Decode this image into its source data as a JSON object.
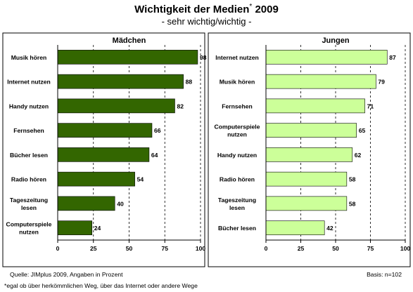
{
  "header": {
    "title": "Wichtigkeit der Medien",
    "title_mark": "*",
    "title_year": "2009",
    "subtitle": "- sehr wichtig/wichtig -"
  },
  "chart_data": [
    {
      "type": "bar",
      "orientation": "horizontal",
      "title": "Mädchen",
      "categories": [
        "Musik hören",
        "Internet nutzen",
        "Handy nutzen",
        "Fernsehen",
        "Bücher lesen",
        "Radio hören",
        "Tageszeitung\nlesen",
        "Computerspiele\nnutzen"
      ],
      "values": [
        98,
        88,
        82,
        66,
        64,
        54,
        40,
        24
      ],
      "xlim": [
        0,
        100
      ],
      "xticks": [
        0,
        25,
        50,
        75,
        100
      ],
      "grid": "vertical dashed",
      "bar_color": "#336600"
    },
    {
      "type": "bar",
      "orientation": "horizontal",
      "title": "Jungen",
      "categories": [
        "Internet nutzen",
        "Musik hören",
        "Fernsehen",
        "Computerspiele\nnutzen",
        "Handy nutzen",
        "Radio hören",
        "Tageszeitung\nlesen",
        "Bücher lesen"
      ],
      "values": [
        87,
        79,
        71,
        65,
        62,
        58,
        58,
        42
      ],
      "xlim": [
        0,
        100
      ],
      "xticks": [
        0,
        25,
        50,
        75,
        100
      ],
      "grid": "vertical dashed",
      "bar_color": "#ccff99"
    }
  ],
  "footer": {
    "source": "Quelle: JIMplus 2009, Angaben in Prozent",
    "basis": "Basis: n=102",
    "footnote": "*egal ob über herkömmlichen Weg, über das Internet oder andere Wege"
  }
}
